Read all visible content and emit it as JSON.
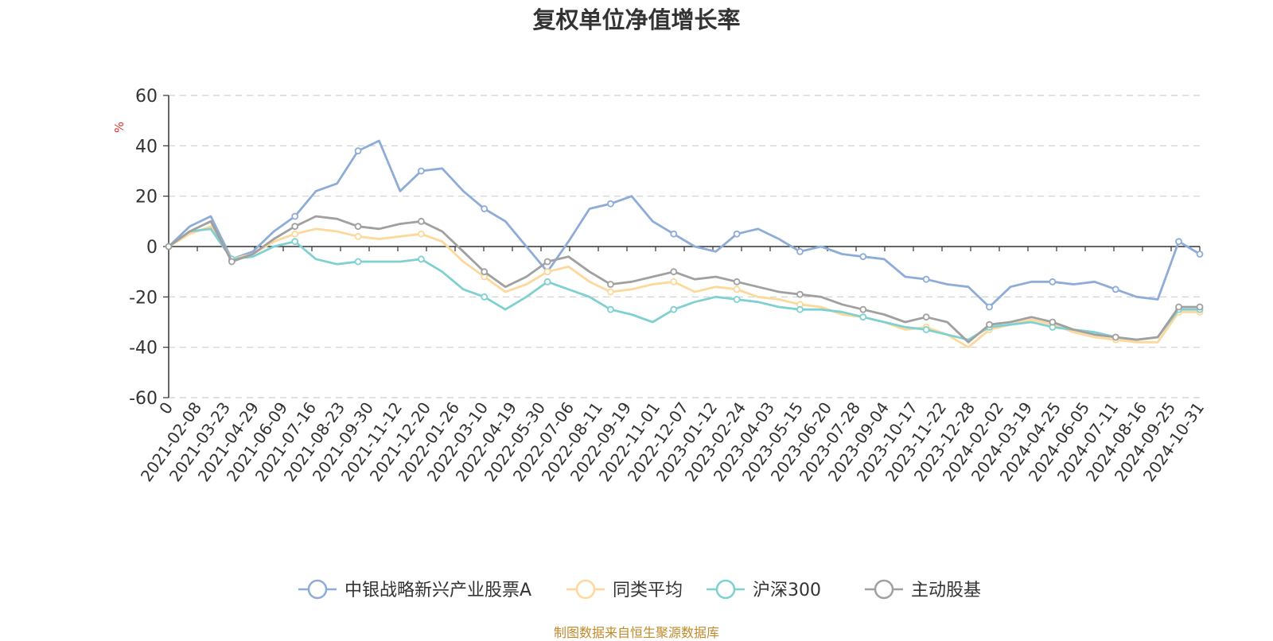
{
  "chart_data": {
    "type": "line",
    "title": "复权单位净值增长率",
    "ylabel": "%",
    "ylim": [
      -60,
      60
    ],
    "yticks": [
      60,
      40,
      20,
      0,
      -20,
      -40,
      -60
    ],
    "grid": true,
    "legend_position": "bottom-center",
    "x_tick_labels": [
      "0",
      "2021-02-08",
      "2021-03-23",
      "2021-04-29",
      "2021-06-09",
      "2021-07-16",
      "2021-08-23",
      "2021-09-30",
      "2021-11-12",
      "2021-12-20",
      "2022-01-26",
      "2022-03-10",
      "2022-04-19",
      "2022-05-30",
      "2022-07-06",
      "2022-08-11",
      "2022-09-19",
      "2022-11-01",
      "2022-12-07",
      "2023-01-12",
      "2023-02-24",
      "2023-04-03",
      "2023-05-15",
      "2023-06-20",
      "2023-07-28",
      "2023-09-04",
      "2023-10-17",
      "2023-11-22",
      "2023-12-28",
      "2024-02-02",
      "2024-03-19",
      "2024-04-25",
      "2024-06-05",
      "2024-07-11",
      "2024-08-16",
      "2024-09-25",
      "2024-10-31"
    ],
    "series": [
      {
        "name": "中银战略新兴产业股票A",
        "color": "#8eacd8",
        "values": [
          0,
          8,
          12,
          -5,
          -2,
          6,
          12,
          22,
          25,
          38,
          42,
          22,
          30,
          31,
          22,
          15,
          10,
          0,
          -10,
          2,
          15,
          17,
          20,
          10,
          5,
          0,
          -2,
          5,
          7,
          3,
          -2,
          0,
          -3,
          -4,
          -5,
          -12,
          -13,
          -15,
          -16,
          -24,
          -16,
          -14,
          -14,
          -15,
          -14,
          -17,
          -20,
          -21,
          2,
          -3
        ]
      },
      {
        "name": "同类平均",
        "color": "#fdd89b",
        "values": [
          0,
          5,
          8,
          -5,
          -3,
          2,
          5,
          7,
          6,
          4,
          3,
          4,
          5,
          2,
          -6,
          -12,
          -18,
          -15,
          -10,
          -8,
          -14,
          -18,
          -17,
          -15,
          -14,
          -18,
          -16,
          -17,
          -20,
          -21,
          -23,
          -24,
          -27,
          -28,
          -30,
          -33,
          -32,
          -35,
          -40,
          -33,
          -31,
          -29,
          -31,
          -34,
          -36,
          -37,
          -38,
          -38,
          -26,
          -26
        ]
      },
      {
        "name": "沪深300",
        "color": "#7fd1d1",
        "values": [
          0,
          6,
          7,
          -5,
          -4,
          0,
          2,
          -5,
          -7,
          -6,
          -6,
          -6,
          -5,
          -10,
          -17,
          -20,
          -25,
          -20,
          -14,
          -17,
          -20,
          -25,
          -27,
          -30,
          -25,
          -22,
          -20,
          -21,
          -22,
          -24,
          -25,
          -25,
          -26,
          -28,
          -30,
          -32,
          -33,
          -35,
          -37,
          -32,
          -31,
          -30,
          -32,
          -33,
          -34,
          -36,
          -37,
          -36,
          -25,
          -25
        ]
      },
      {
        "name": "主动股基",
        "color": "#a0a0a0",
        "values": [
          0,
          6,
          10,
          -6,
          -3,
          3,
          8,
          12,
          11,
          8,
          7,
          9,
          10,
          6,
          -2,
          -10,
          -16,
          -12,
          -6,
          -4,
          -10,
          -15,
          -14,
          -12,
          -10,
          -13,
          -12,
          -14,
          -16,
          -18,
          -19,
          -20,
          -23,
          -25,
          -27,
          -30,
          -28,
          -30,
          -38,
          -31,
          -30,
          -28,
          -30,
          -33,
          -35,
          -36,
          -37,
          -36,
          -24,
          -24
        ]
      }
    ]
  },
  "source_text": "制图数据来自恒生聚源数据库"
}
